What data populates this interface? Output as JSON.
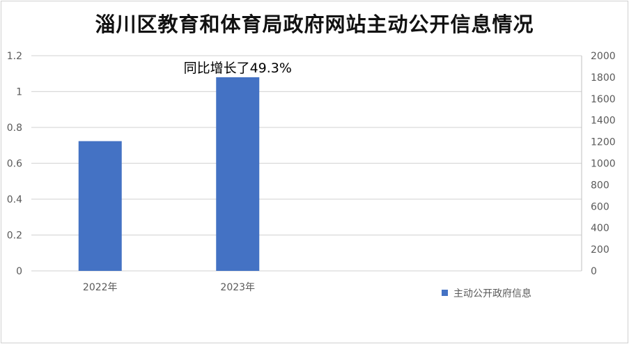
{
  "chart_data": {
    "type": "bar",
    "title": "淄川区教育和体育局政府网站主动公开信息情况",
    "categories": [
      "2022年",
      "2023年"
    ],
    "series": [
      {
        "name": "主动公开政府信息",
        "values": [
          1206,
          1800
        ],
        "axis": "right",
        "color": "#4472C4"
      }
    ],
    "left_axis": {
      "range": [
        0,
        1.2
      ],
      "ticks": [
        "0",
        "0.2",
        "0.4",
        "0.6",
        "0.8",
        "1",
        "1.2"
      ]
    },
    "right_axis": {
      "range": [
        0,
        2000
      ],
      "ticks": [
        "0",
        "200",
        "400",
        "600",
        "800",
        "1000",
        "1200",
        "1400",
        "1600",
        "1800",
        "2000"
      ]
    },
    "annotation": "同比增长了49.3%",
    "grid": true,
    "legend_position": "bottom-right",
    "xlabel": "",
    "ylabel": ""
  }
}
